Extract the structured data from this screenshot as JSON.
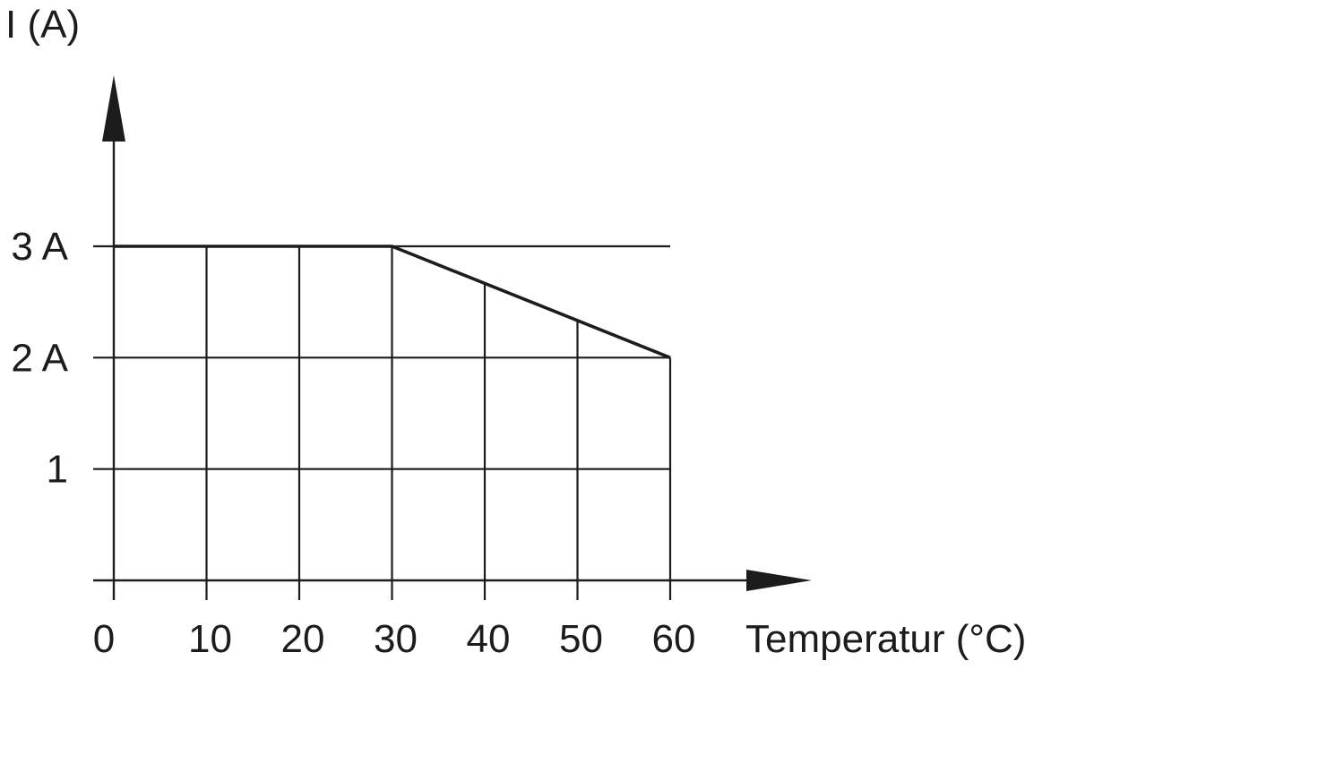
{
  "chart_data": {
    "type": "line",
    "ylabel": "I (A)",
    "xlabel": "Temperatur (°C)",
    "x_ticks": [
      "0",
      "10",
      "20",
      "30",
      "40",
      "50",
      "60"
    ],
    "y_tick_values": [
      1,
      2,
      3
    ],
    "y_tick_labels": [
      "1",
      "2 A",
      "3 A"
    ],
    "xlim": [
      0,
      60
    ],
    "ylim": [
      0,
      3
    ],
    "grid": true,
    "series": [
      {
        "x": [
          0,
          30,
          60
        ],
        "y": [
          3,
          3,
          2
        ]
      }
    ],
    "colors": {
      "line": "#1c1c1c",
      "grid": "#1c1c1c"
    }
  }
}
